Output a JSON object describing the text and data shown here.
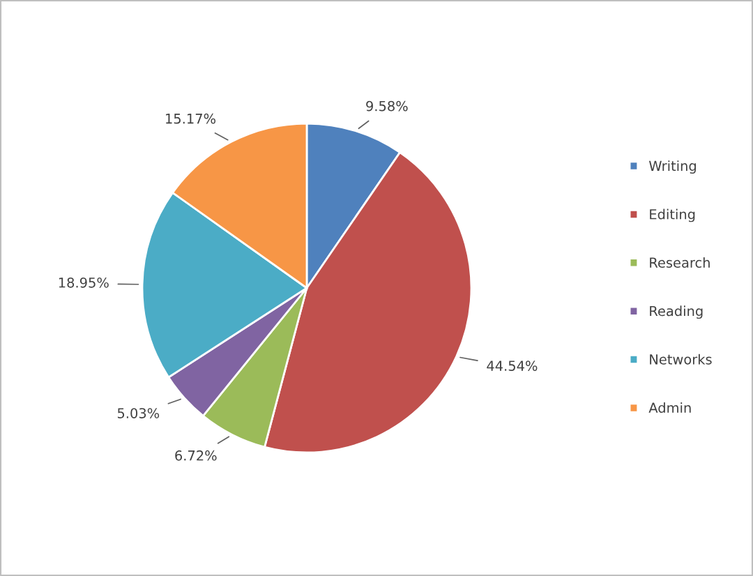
{
  "chart_data": {
    "type": "pie",
    "categories": [
      "Writing",
      "Editing",
      "Research",
      "Reading",
      "Networks",
      "Admin"
    ],
    "values": [
      9.58,
      44.54,
      6.72,
      5.03,
      18.95,
      15.17
    ],
    "colors": [
      "#4f81bd",
      "#c0504d",
      "#9bbb59",
      "#8064a2",
      "#4bacc6",
      "#f79646"
    ],
    "value_labels": [
      "9.58%",
      "44.54%",
      "6.72%",
      "5.03%",
      "18.95%",
      "15.17%"
    ],
    "legend": "right"
  }
}
